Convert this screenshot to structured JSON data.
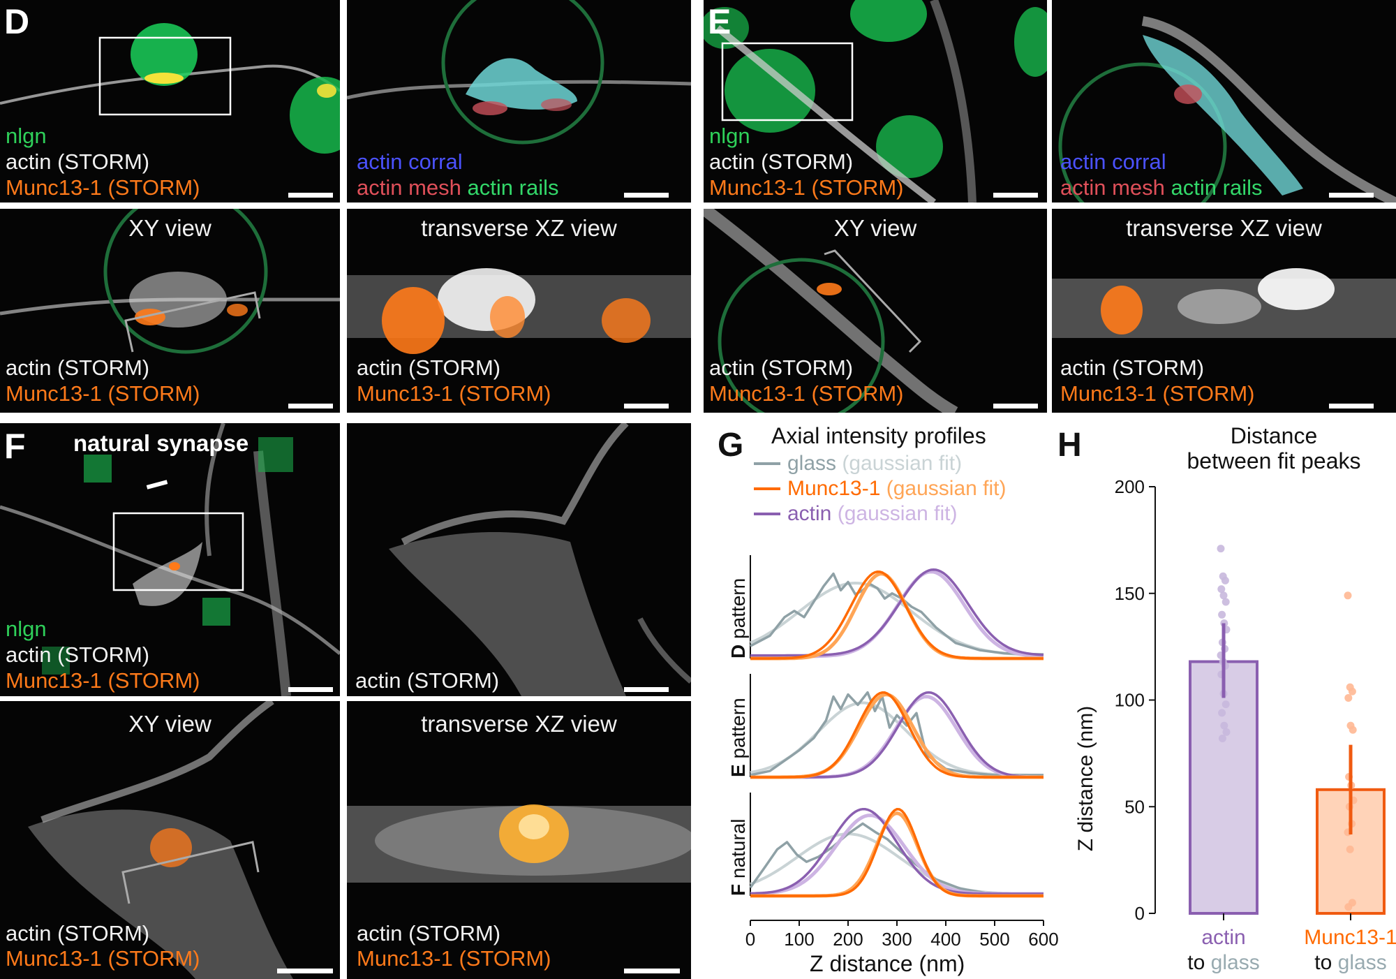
{
  "figure": {
    "panels": {
      "D": {
        "letter": "D",
        "top_left": {
          "legend": [
            "nlgn",
            "actin (STORM)",
            "Munc13-1 (STORM)"
          ]
        },
        "top_right": {
          "legend_line1_a": "actin corral",
          "legend_line2_a": "actin mesh",
          "legend_line2_b": "actin rails"
        },
        "bottom_left": {
          "title": "XY view",
          "legend": [
            "actin (STORM)",
            "Munc13-1 (STORM)"
          ]
        },
        "bottom_right": {
          "title": "transverse XZ view",
          "legend": [
            "actin (STORM)",
            "Munc13-1 (STORM)"
          ]
        }
      },
      "E": {
        "letter": "E",
        "top_left": {
          "legend": [
            "nlgn",
            "actin (STORM)",
            "Munc13-1 (STORM)"
          ]
        },
        "top_right": {
          "legend_line1_a": "actin corral",
          "legend_line2_a": "actin mesh",
          "legend_line2_b": "actin rails"
        },
        "bottom_left": {
          "title": "XY view",
          "legend": [
            "actin (STORM)",
            "Munc13-1 (STORM)"
          ]
        },
        "bottom_right": {
          "title": "transverse XZ view",
          "legend": [
            "actin (STORM)",
            "Munc13-1 (STORM)"
          ]
        }
      },
      "F": {
        "letter": "F",
        "title": "natural synapse",
        "top_left": {
          "legend": [
            "nlgn",
            "actin (STORM)",
            "Munc13-1 (STORM)"
          ]
        },
        "top_right": {
          "legend": [
            "actin (STORM)"
          ]
        },
        "bottom_left": {
          "title": "XY view",
          "legend": [
            "actin (STORM)",
            "Munc13-1 (STORM)"
          ]
        },
        "bottom_right": {
          "title": "transverse XZ view",
          "legend": [
            "actin (STORM)",
            "Munc13-1 (STORM)"
          ]
        }
      }
    },
    "colors": {
      "actin": "#8a5fb0",
      "actin_fit": "#cdb4e3",
      "munc": "#ff6a00",
      "munc_fit": "#ffa556",
      "glass": "#8fa1a6",
      "glass_fit": "#c9d3d5"
    }
  },
  "chart_data": [
    {
      "id": "G",
      "letter": "G",
      "type": "line",
      "title": "Axial intensity profiles",
      "legend": [
        {
          "name": "glass",
          "fit": "(gaussian fit)"
        },
        {
          "name": "Munc13-1",
          "fit": "(gaussian fit)"
        },
        {
          "name": "actin",
          "fit": "(gaussian fit)"
        }
      ],
      "xlabel": "Z distance (nm)",
      "xlim": [
        0,
        600
      ],
      "xticks": [
        0,
        100,
        200,
        300,
        400,
        500,
        600
      ],
      "rows": [
        {
          "label_bold": "D",
          "label_rest": " pattern",
          "glass_raw_x": [
            0,
            40,
            70,
            90,
            110,
            130,
            150,
            170,
            185,
            200,
            215,
            230,
            245,
            260,
            275,
            290,
            310,
            330,
            350,
            380,
            420,
            470,
            520,
            600
          ],
          "glass_raw_y": [
            0.12,
            0.22,
            0.4,
            0.46,
            0.4,
            0.55,
            0.7,
            0.82,
            0.66,
            0.74,
            0.62,
            0.66,
            0.72,
            0.68,
            0.58,
            0.63,
            0.58,
            0.5,
            0.45,
            0.3,
            0.15,
            0.08,
            0.05,
            0.04
          ],
          "glass_fit": {
            "mu": 215,
            "sigma": 115,
            "amp": 0.7,
            "base": 0.03
          },
          "munc_fit": {
            "mu": 268,
            "sigma": 52,
            "amp": 0.82,
            "base": 0.0
          },
          "munc_raw": {
            "mu": 262,
            "sigma": 56,
            "amp": 0.84,
            "base": 0.0
          },
          "actin_fit": {
            "mu": 370,
            "sigma": 68,
            "amp": 0.82,
            "base": 0.02
          },
          "actin_raw": {
            "mu": 375,
            "sigma": 70,
            "amp": 0.83,
            "base": 0.03
          }
        },
        {
          "label_bold": "E",
          "label_rest": " pattern",
          "glass_raw_x": [
            0,
            40,
            70,
            100,
            130,
            155,
            170,
            185,
            200,
            220,
            240,
            255,
            270,
            285,
            300,
            320,
            340,
            360,
            400,
            450,
            500,
            600
          ],
          "glass_raw_y": [
            0.02,
            0.06,
            0.16,
            0.26,
            0.38,
            0.55,
            0.78,
            0.66,
            0.8,
            0.7,
            0.82,
            0.64,
            0.78,
            0.48,
            0.6,
            0.5,
            0.62,
            0.22,
            0.08,
            0.04,
            0.02,
            0.02
          ],
          "glass_fit": {
            "mu": 230,
            "sigma": 90,
            "amp": 0.7,
            "base": 0.02
          },
          "munc_fit": {
            "mu": 278,
            "sigma": 55,
            "amp": 0.8,
            "base": 0.0
          },
          "munc_raw": {
            "mu": 272,
            "sigma": 52,
            "amp": 0.82,
            "base": 0.0
          },
          "actin_fit": {
            "mu": 360,
            "sigma": 62,
            "amp": 0.78,
            "base": 0.0
          },
          "actin_raw": {
            "mu": 365,
            "sigma": 62,
            "amp": 0.82,
            "base": 0.0
          }
        },
        {
          "label_bold": "F",
          "label_rest": " natural",
          "glass_raw_x": [
            0,
            30,
            55,
            75,
            95,
            115,
            140,
            170,
            200,
            230,
            255,
            280,
            310,
            340,
            380,
            430,
            480,
            540,
            600
          ],
          "glass_raw_y": [
            0.08,
            0.28,
            0.45,
            0.52,
            0.4,
            0.33,
            0.38,
            0.48,
            0.6,
            0.7,
            0.62,
            0.55,
            0.42,
            0.3,
            0.16,
            0.07,
            0.03,
            0.02,
            0.02
          ],
          "glass_fit": {
            "mu": 200,
            "sigma": 105,
            "amp": 0.58,
            "base": 0.02
          },
          "munc_fit": {
            "mu": 300,
            "sigma": 42,
            "amp": 0.8,
            "base": 0.0
          },
          "munc_raw": {
            "mu": 302,
            "sigma": 40,
            "amp": 0.84,
            "base": 0.0
          },
          "actin_fit": {
            "mu": 245,
            "sigma": 70,
            "amp": 0.76,
            "base": 0.02
          },
          "actin_raw": {
            "mu": 232,
            "sigma": 68,
            "amp": 0.82,
            "base": 0.02
          }
        }
      ]
    },
    {
      "id": "H",
      "letter": "H",
      "type": "bar",
      "title_line1": "Distance",
      "title_line2": "between fit peaks",
      "ylabel": "Z distance (nm)",
      "ylim": [
        0,
        200
      ],
      "yticks": [
        0,
        50,
        100,
        150,
        200
      ],
      "categories": [
        {
          "line1": "actin",
          "to": "to ",
          "glass": "glass"
        },
        {
          "line1": "Munc13-1",
          "to": "to ",
          "glass": "glass"
        }
      ],
      "values": [
        118,
        58
      ],
      "error_low": [
        101,
        37
      ],
      "error_high": [
        136,
        79
      ],
      "points": [
        [
          171,
          158,
          156,
          152,
          149,
          146,
          140,
          136,
          133,
          127,
          124,
          121,
          118,
          116,
          112,
          103,
          98,
          94,
          88,
          85,
          82
        ],
        [
          149,
          106,
          104,
          101,
          88,
          86,
          64,
          60,
          53,
          50,
          42,
          38,
          30,
          5,
          3
        ]
      ],
      "bar_colors": [
        "#d8cce6",
        "#ffd3b8"
      ],
      "edge_colors": [
        "#8a5fb0",
        "#f05a10"
      ],
      "point_colors": [
        "#c8b8dd",
        "#ffb894"
      ],
      "label_colors": [
        "#8a5fb0",
        "#ff6a00"
      ],
      "glass_color": "#98aab0"
    }
  ]
}
